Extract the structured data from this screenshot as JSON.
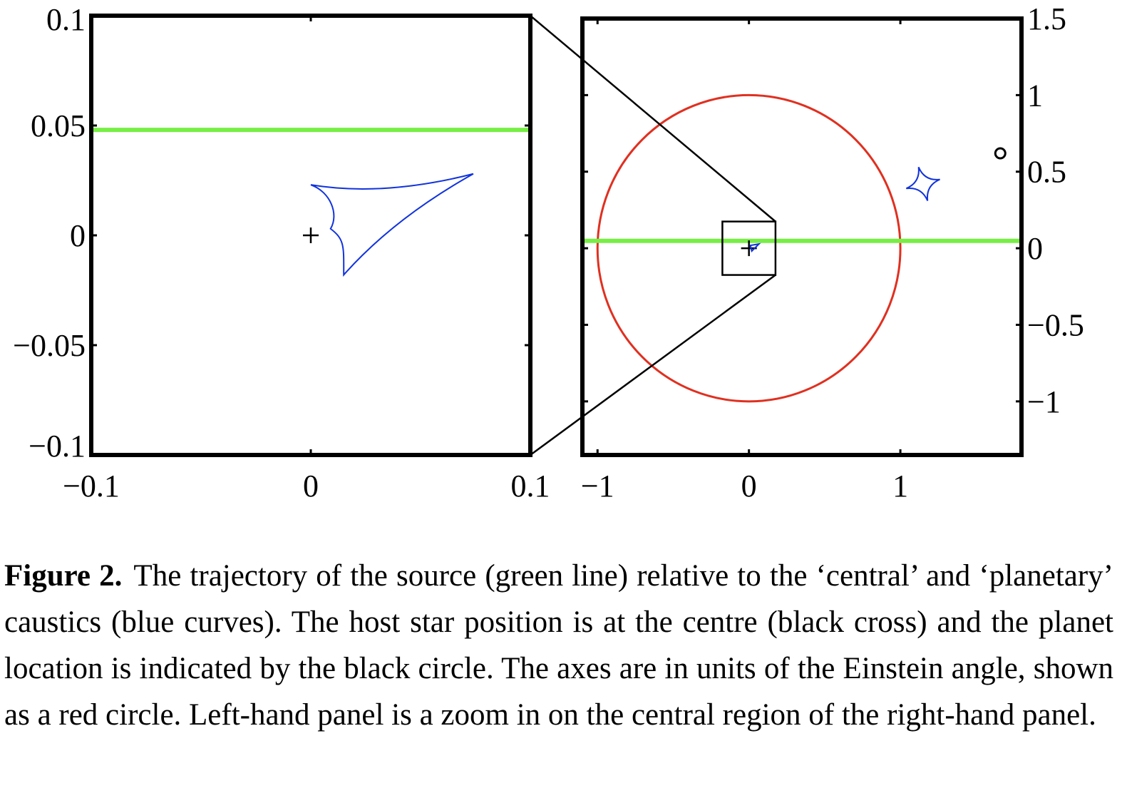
{
  "chart_data": [
    {
      "type": "scatter",
      "panel": "left",
      "xlim": [
        -0.1,
        0.1
      ],
      "ylim": [
        -0.1,
        0.1
      ],
      "xticks": [
        -0.1,
        0,
        0.1
      ],
      "yticks": [
        -0.1,
        -0.05,
        0,
        0.05,
        0.1
      ],
      "xtick_labels": [
        "−0.1",
        "0",
        "0.1"
      ],
      "ytick_labels": [
        "−0.1",
        "−0.05",
        "0",
        "0.05",
        "0.1"
      ],
      "grid": false,
      "series": [
        {
          "kind": "line",
          "color": "#77ee44",
          "y": 0.048
        },
        {
          "kind": "caustic",
          "color": "#1133dd",
          "cusps": [
            [
              0,
              0.023
            ],
            [
              0.074,
              0.028
            ],
            [
              0.015,
              -0.018
            ]
          ],
          "indent": [
            0.009,
            0.003
          ]
        },
        {
          "kind": "marker",
          "symbol": "+",
          "color": "#000000",
          "x": 0,
          "y": 0
        }
      ]
    },
    {
      "type": "scatter",
      "panel": "right",
      "xlim": [
        -1.1,
        1.8
      ],
      "ylim": [
        -1.35,
        1.5
      ],
      "xticks": [
        -1,
        0,
        1
      ],
      "yticks": [
        -1,
        -0.5,
        0,
        0.5,
        1,
        1.5
      ],
      "xtick_labels": [
        "−1",
        "0",
        "1"
      ],
      "ytick_labels": [
        "−1",
        "−0.5",
        "0",
        "0.5",
        "1",
        "1.5"
      ],
      "yaxis_side": "right",
      "grid": false,
      "series": [
        {
          "kind": "circle",
          "color": "#e03020",
          "cx": 0,
          "cy": 0,
          "r": 1
        },
        {
          "kind": "line",
          "color": "#77ee44",
          "y": 0.048
        },
        {
          "kind": "caustic",
          "color": "#1133dd",
          "center": [
            1.15,
            0.42
          ],
          "halfwidth": 0.115
        },
        {
          "kind": "marker",
          "symbol": "o",
          "color": "#000000",
          "x": 1.66,
          "y": 0.62
        },
        {
          "kind": "marker",
          "symbol": "+",
          "color": "#000000",
          "x": 0,
          "y": 0
        },
        {
          "kind": "zoom_box",
          "color": "#000000",
          "x": [
            -0.1,
            0.1
          ],
          "y": [
            -0.1,
            0.1
          ]
        }
      ]
    }
  ],
  "caption": {
    "label": "Figure 2.",
    "text": "The trajectory of the source (green line) relative to the ‘central’ and ‘planetary’ caustics (blue curves). The host star position is at the centre (black cross) and the planet location is indicated by the black circle. The axes are in units of the Einstein angle, shown as a red circle. Left-hand panel is a zoom in on the central region of the right-hand panel."
  }
}
